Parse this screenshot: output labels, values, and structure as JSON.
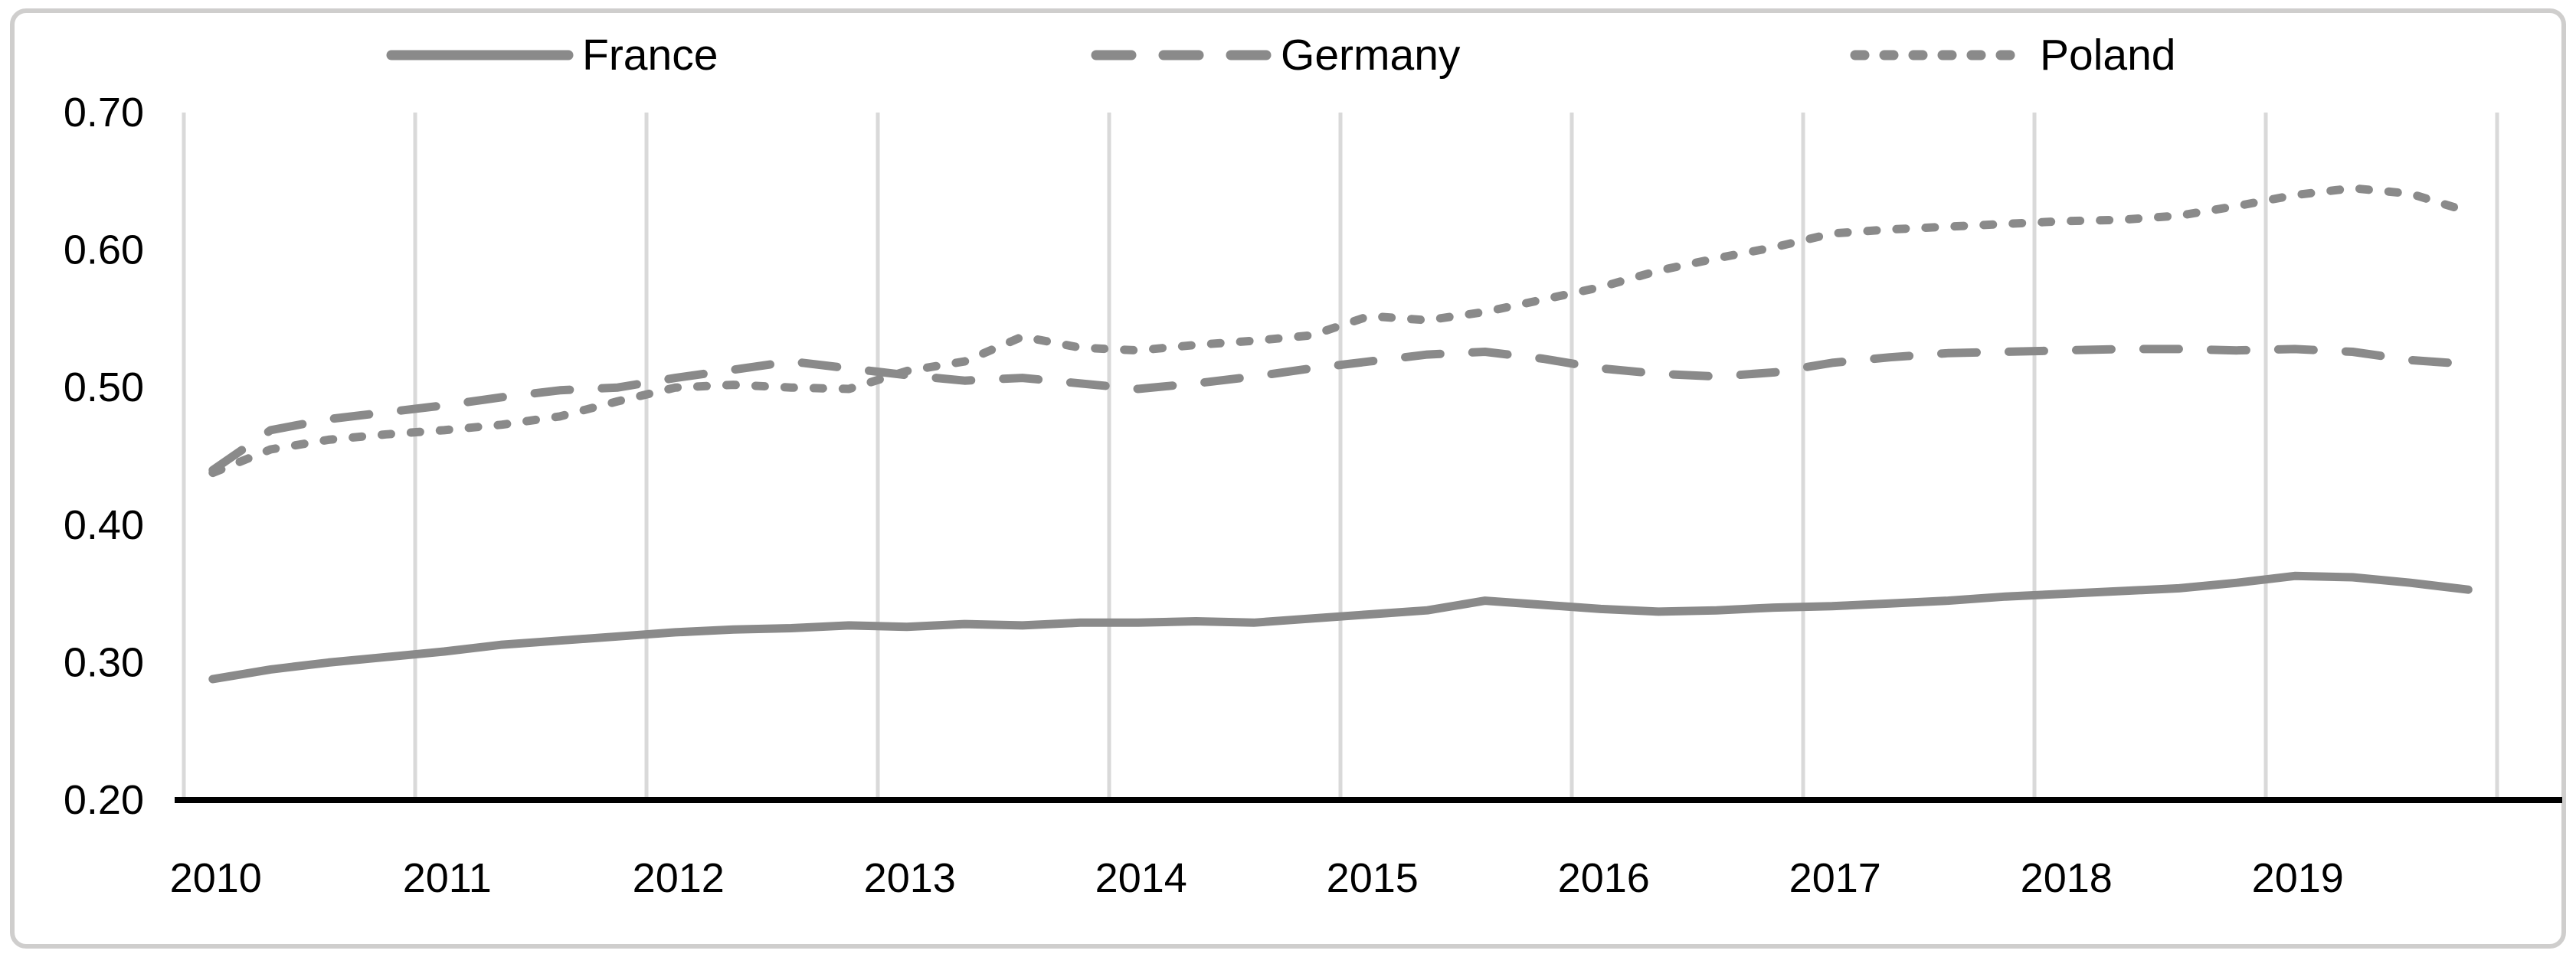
{
  "figure": {
    "background_color": "#ffffff",
    "border_color": "#cfcecd",
    "line_color": "#8a8a8a",
    "gridline_color": "#d9d9d9",
    "axis_color": "#000000"
  },
  "legend": {
    "position": "top",
    "items": [
      {
        "label": "France",
        "style": "solid",
        "swatch": "solid-line-swatch"
      },
      {
        "label": "Germany",
        "style": "long-dash",
        "swatch": "long-dash-line-swatch"
      },
      {
        "label": "Poland",
        "style": "short-dash",
        "swatch": "short-dash-line-swatch"
      }
    ]
  },
  "chart_data": {
    "type": "line",
    "title": "",
    "xlabel": "",
    "ylabel": "",
    "grid": "vertical-only",
    "legend_position": "top",
    "ylim": [
      0.2,
      0.7
    ],
    "yticks": [
      "0.70",
      "0.60",
      "0.50",
      "0.40",
      "0.30",
      "0.20"
    ],
    "ytick_values": [
      0.7,
      0.6,
      0.5,
      0.4,
      0.3,
      0.2
    ],
    "xticks": [
      "2010",
      "2011",
      "2012",
      "2013",
      "2014",
      "2015",
      "2016",
      "2017",
      "2018",
      "2019"
    ],
    "x_frequency": "quarterly",
    "x": [
      2010.0,
      2010.25,
      2010.5,
      2010.75,
      2011.0,
      2011.25,
      2011.5,
      2011.75,
      2012.0,
      2012.25,
      2012.5,
      2012.75,
      2013.0,
      2013.25,
      2013.5,
      2013.75,
      2014.0,
      2014.25,
      2014.5,
      2014.75,
      2015.0,
      2015.25,
      2015.5,
      2015.75,
      2016.0,
      2016.25,
      2016.5,
      2016.75,
      2017.0,
      2017.25,
      2017.5,
      2017.75,
      2018.0,
      2018.25,
      2018.5,
      2018.75,
      2019.0,
      2019.25,
      2019.5,
      2019.75
    ],
    "series": [
      {
        "name": "France",
        "style": "solid",
        "values": [
          0.288,
          0.295,
          0.3,
          0.304,
          0.308,
          0.313,
          0.316,
          0.319,
          0.322,
          0.324,
          0.325,
          0.327,
          0.326,
          0.328,
          0.327,
          0.329,
          0.329,
          0.33,
          0.329,
          0.332,
          0.335,
          0.338,
          0.345,
          0.342,
          0.339,
          0.337,
          0.338,
          0.34,
          0.341,
          0.343,
          0.345,
          0.348,
          0.35,
          0.352,
          0.354,
          0.358,
          0.363,
          0.362,
          0.358,
          0.353
        ]
      },
      {
        "name": "Germany",
        "style": "long-dash",
        "values": [
          0.44,
          0.469,
          0.477,
          0.482,
          0.487,
          0.493,
          0.498,
          0.5,
          0.507,
          0.513,
          0.519,
          0.514,
          0.509,
          0.505,
          0.507,
          0.503,
          0.499,
          0.503,
          0.508,
          0.514,
          0.519,
          0.524,
          0.526,
          0.521,
          0.514,
          0.51,
          0.508,
          0.511,
          0.518,
          0.522,
          0.525,
          0.526,
          0.527,
          0.528,
          0.528,
          0.527,
          0.528,
          0.526,
          0.52,
          0.517
        ]
      },
      {
        "name": "Poland",
        "style": "short-dash",
        "values": [
          0.438,
          0.455,
          0.462,
          0.466,
          0.469,
          0.473,
          0.479,
          0.49,
          0.5,
          0.502,
          0.5,
          0.499,
          0.512,
          0.519,
          0.537,
          0.529,
          0.527,
          0.531,
          0.534,
          0.538,
          0.552,
          0.549,
          0.555,
          0.564,
          0.573,
          0.585,
          0.594,
          0.602,
          0.612,
          0.615,
          0.617,
          0.619,
          0.621,
          0.622,
          0.625,
          0.632,
          0.64,
          0.645,
          0.641,
          0.628
        ]
      }
    ]
  }
}
